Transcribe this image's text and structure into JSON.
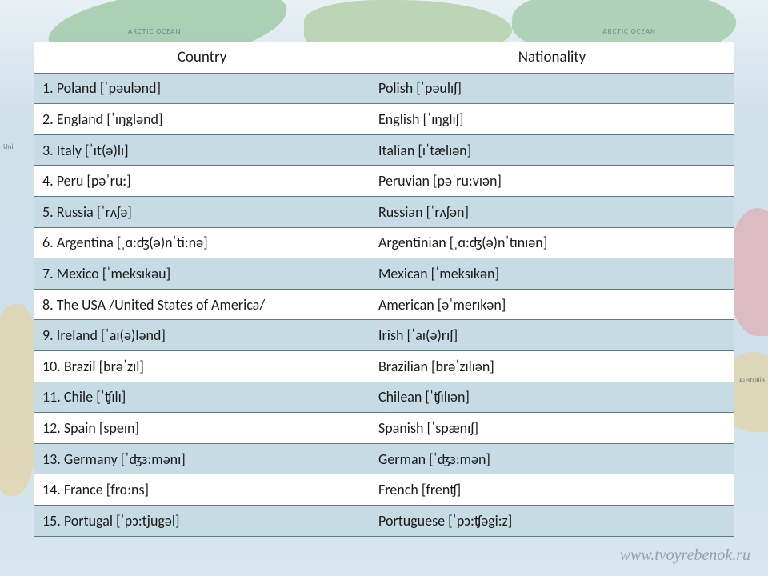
{
  "background": {
    "ocean_label": "ARCTIC OCEAN",
    "labels": {
      "uni": "Uni",
      "aus": "Australia"
    }
  },
  "watermark": "www.tvoyrebenok.ru",
  "table": {
    "columns": [
      "Country",
      "Nationality"
    ],
    "column_widths": [
      "48%",
      "52%"
    ],
    "header_bg": "#ffffff",
    "row_even_bg": "#c6dbe4",
    "row_odd_bg": "#ffffff",
    "border_color": "#5f7b8a",
    "text_color": "#1a1a1a",
    "font_size_pt": 14,
    "rows": [
      [
        "1. Poland [ˈpəulənd]",
        "Polish [ˈpəulıʃ]"
      ],
      [
        "2. England [ˈıŋglənd]",
        "English [ˈıŋglıʃ]"
      ],
      [
        "3. Italy [ˈıt(ə)lı]",
        "Italian [ıˈtælıən]"
      ],
      [
        "4. Peru [pəˈru:]",
        "Peruvian [pəˈru:vıən]"
      ],
      [
        "5. Russia [ˈrʌʃə]",
        "Russian [ˈrʌʃən]"
      ],
      [
        "6. Argentina [ˌɑ:ʤ(ə)nˈti:nə]",
        "Argentinian [ˌɑ:ʤ(ə)nˈtınıən]"
      ],
      [
        "7. Mexico [ˈmeksıkəu]",
        "Mexican [ˈmeksıkən]"
      ],
      [
        "8. The USA /United States of America/",
        "American [əˈmerıkən]"
      ],
      [
        "9. Ireland [ˈaı(ə)lənd]",
        "Irish [ˈaı(ə)rıʃ]"
      ],
      [
        "10. Brazil [brəˈzıl]",
        "Brazilian [brəˈzılıən]"
      ],
      [
        "11. Chile [ˈʧılı]",
        "Chilean [ˈʧılıən]"
      ],
      [
        "12. Spain [speın]",
        "Spanish [ˈspænıʃ]"
      ],
      [
        "13. Germany [ˈʤɜ:mənı]",
        "German [ˈʤɜ:mən]"
      ],
      [
        "14. France [frɑ:ns]",
        "French [frenʧ]"
      ],
      [
        "15. Portugal [ˈpɔ:tjugəl]",
        "Portuguese [ˈpɔ:ʧəgi:z]"
      ]
    ]
  }
}
